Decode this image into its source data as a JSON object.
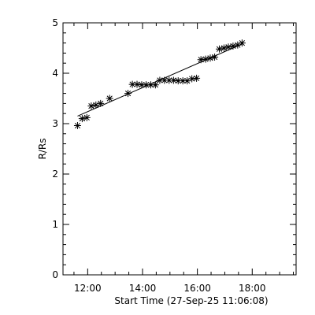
{
  "chart_data": {
    "type": "scatter",
    "xlabel": "Start Time (27-Sep-25 11:06:08)",
    "ylabel": "R/Rs",
    "x_unit": "hours of day",
    "xlim": [
      11.1,
      19.6
    ],
    "ylim": [
      0,
      5
    ],
    "x_ticks": [
      12,
      14,
      16,
      18
    ],
    "x_tick_labels": [
      "12:00",
      "14:00",
      "16:00",
      "18:00"
    ],
    "y_ticks": [
      0,
      1,
      2,
      3,
      4,
      5
    ],
    "y_tick_labels": [
      "0",
      "1",
      "2",
      "3",
      "4",
      "5"
    ],
    "grid": false,
    "marker": "asterisk",
    "color": "#000000",
    "points": [
      {
        "x": 11.63,
        "y": 2.96
      },
      {
        "x": 11.8,
        "y": 3.1
      },
      {
        "x": 11.97,
        "y": 3.12
      },
      {
        "x": 12.13,
        "y": 3.35
      },
      {
        "x": 12.3,
        "y": 3.37
      },
      {
        "x": 12.47,
        "y": 3.4
      },
      {
        "x": 12.8,
        "y": 3.5
      },
      {
        "x": 13.47,
        "y": 3.6
      },
      {
        "x": 13.63,
        "y": 3.78
      },
      {
        "x": 13.8,
        "y": 3.78
      },
      {
        "x": 13.97,
        "y": 3.77
      },
      {
        "x": 14.13,
        "y": 3.77
      },
      {
        "x": 14.3,
        "y": 3.77
      },
      {
        "x": 14.47,
        "y": 3.77
      },
      {
        "x": 14.63,
        "y": 3.86
      },
      {
        "x": 14.8,
        "y": 3.86
      },
      {
        "x": 14.97,
        "y": 3.86
      },
      {
        "x": 15.13,
        "y": 3.86
      },
      {
        "x": 15.3,
        "y": 3.85
      },
      {
        "x": 15.47,
        "y": 3.85
      },
      {
        "x": 15.63,
        "y": 3.85
      },
      {
        "x": 15.8,
        "y": 3.89
      },
      {
        "x": 15.97,
        "y": 3.9
      },
      {
        "x": 16.13,
        "y": 4.27
      },
      {
        "x": 16.3,
        "y": 4.28
      },
      {
        "x": 16.47,
        "y": 4.3
      },
      {
        "x": 16.63,
        "y": 4.32
      },
      {
        "x": 16.8,
        "y": 4.48
      },
      {
        "x": 16.97,
        "y": 4.5
      },
      {
        "x": 17.13,
        "y": 4.52
      },
      {
        "x": 17.3,
        "y": 4.54
      },
      {
        "x": 17.47,
        "y": 4.56
      },
      {
        "x": 17.63,
        "y": 4.6
      }
    ],
    "fit_line": {
      "x": [
        11.63,
        17.63
      ],
      "y": [
        3.15,
        4.58
      ]
    }
  }
}
